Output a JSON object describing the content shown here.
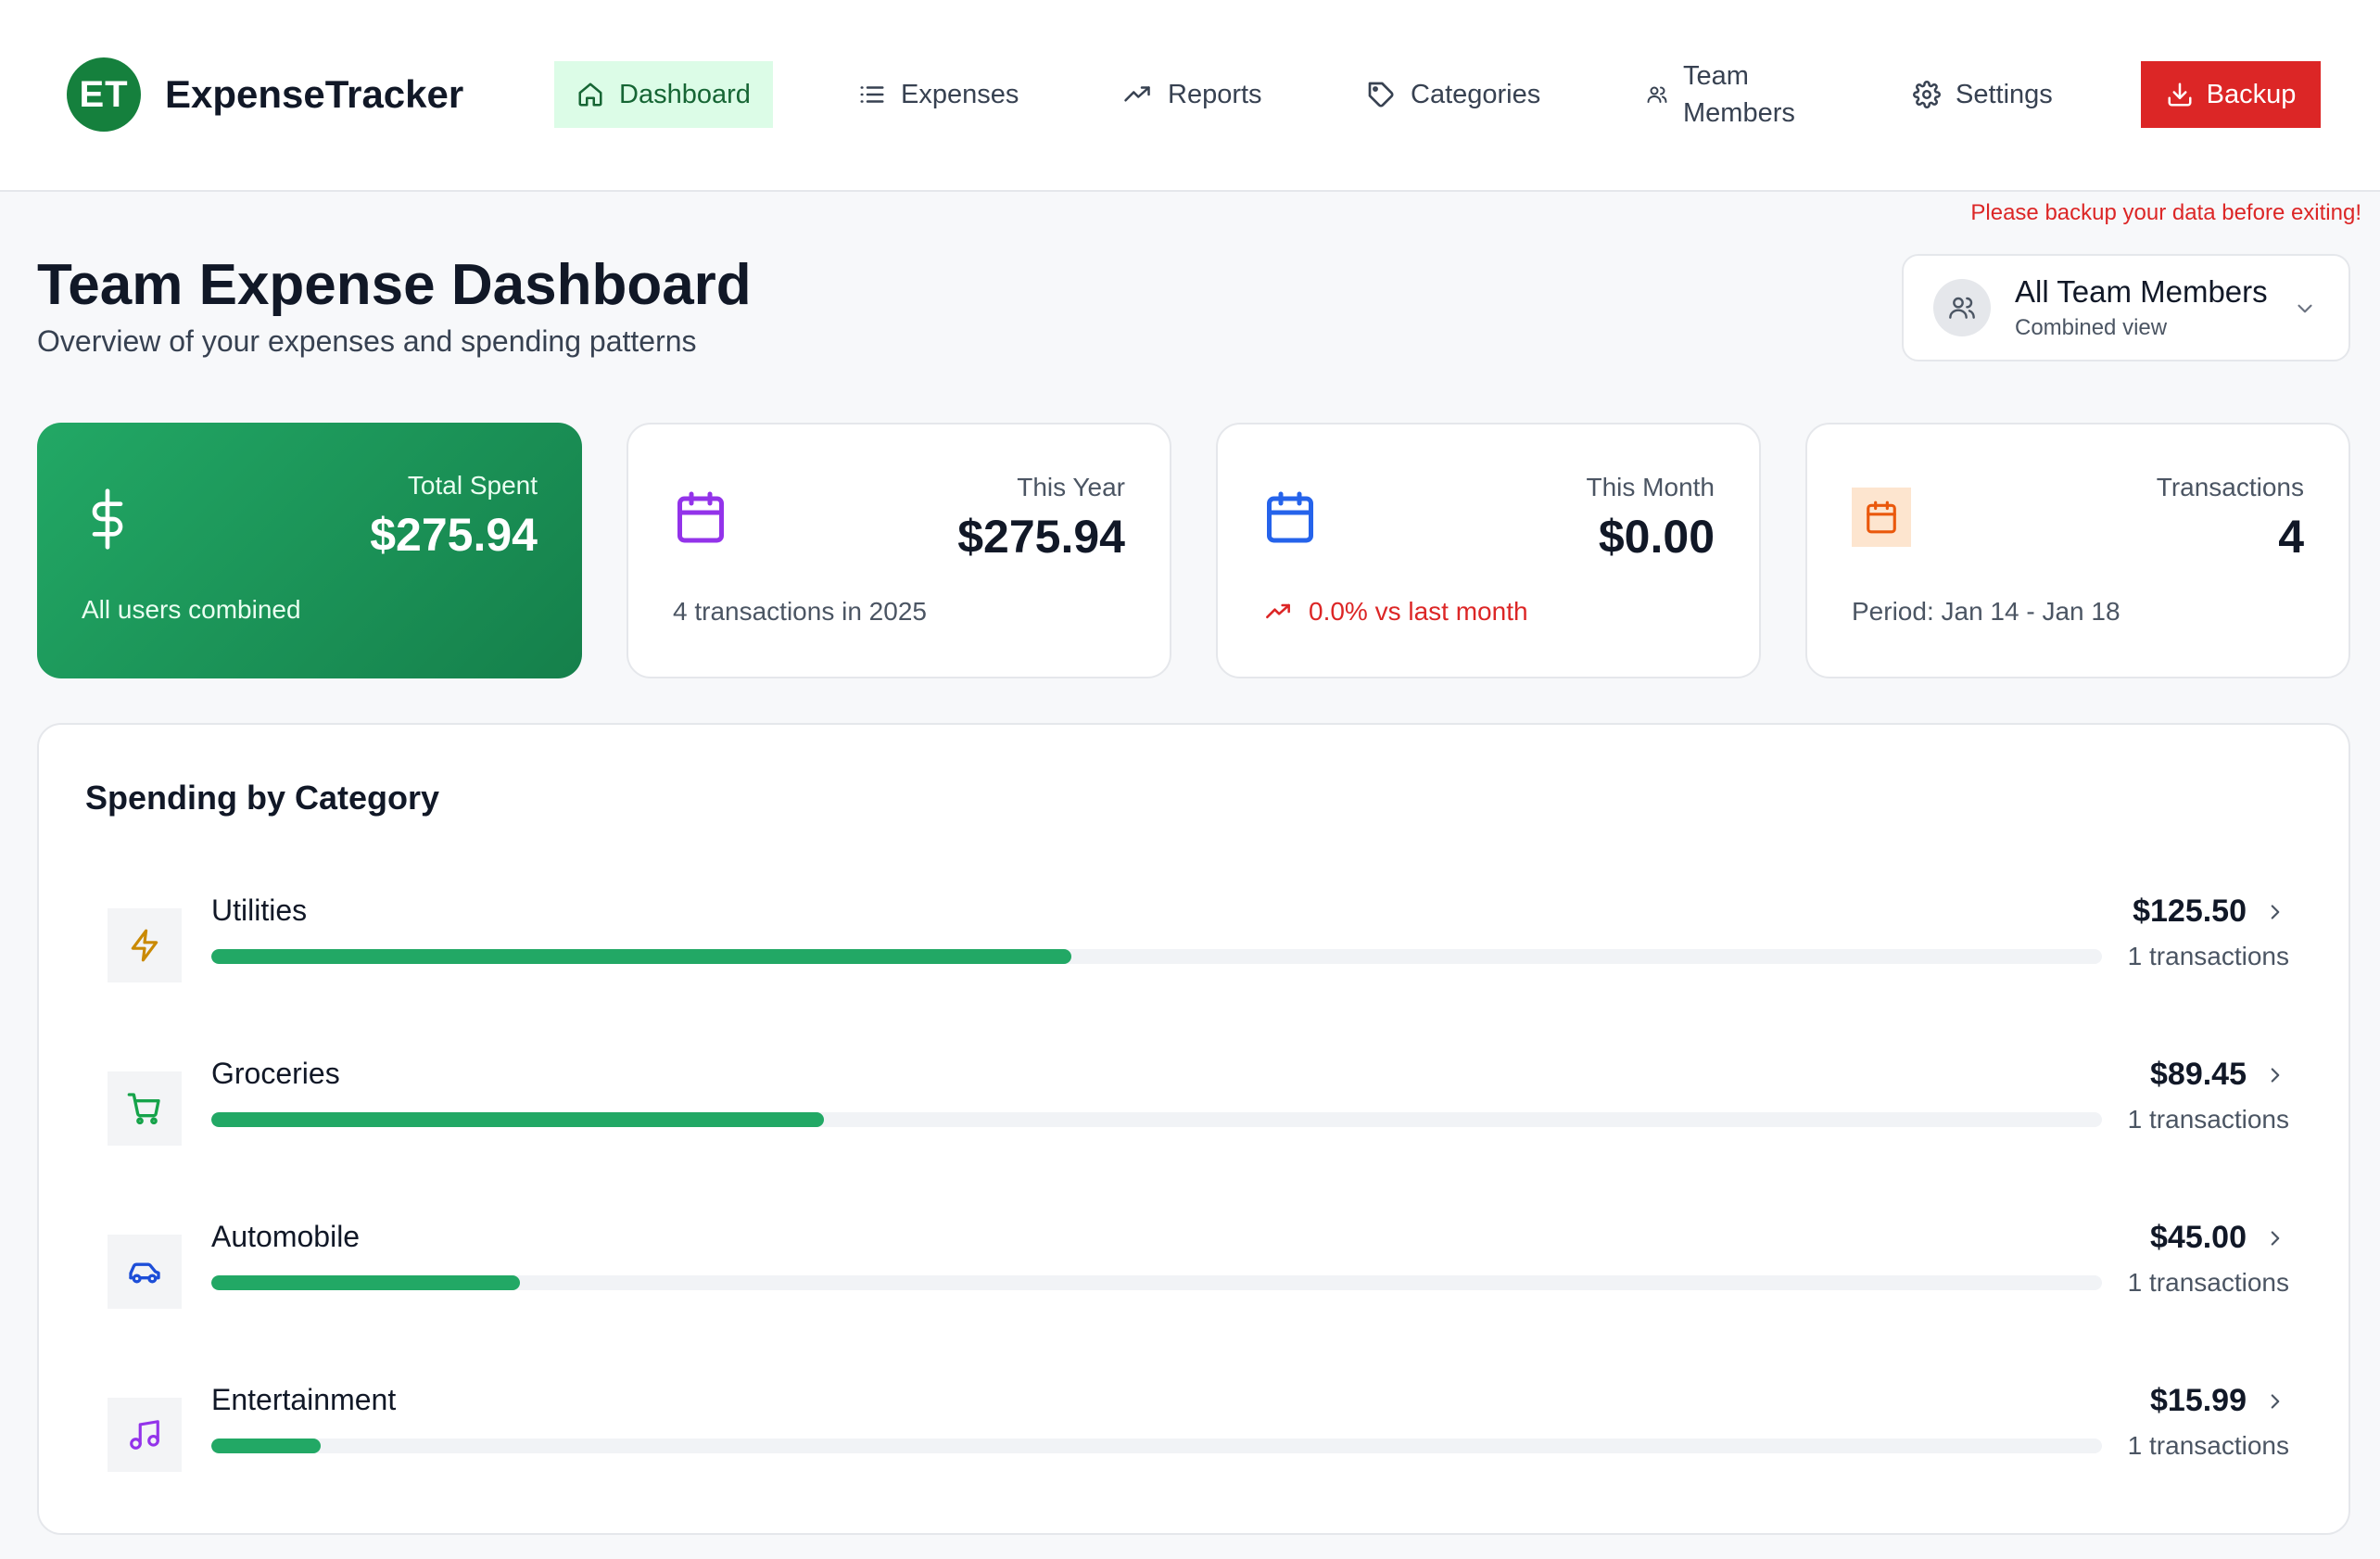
{
  "header": {
    "logo_initials": "ET",
    "brand": "ExpenseTracker",
    "nav": [
      {
        "label": "Dashboard",
        "icon": "home-icon",
        "active": true
      },
      {
        "label": "Expenses",
        "icon": "list-icon"
      },
      {
        "label": "Reports",
        "icon": "trending-up-icon"
      },
      {
        "label": "Categories",
        "icon": "tag-icon"
      },
      {
        "label_line1": "Team",
        "label_line2": "Members",
        "icon": "users-icon"
      },
      {
        "label": "Settings",
        "icon": "gear-icon"
      }
    ],
    "backup_label": "Backup",
    "backup_icon": "download-icon",
    "backup_warning": "Please backup your data before exiting!"
  },
  "page": {
    "title": "Team Expense Dashboard",
    "subtitle": "Overview of your expenses and spending patterns"
  },
  "member_select": {
    "name": "All Team Members",
    "sub": "Combined view"
  },
  "stats": [
    {
      "label": "Total Spent",
      "value": "$275.94",
      "foot": "All users combined",
      "icon": "dollar-icon"
    },
    {
      "label": "This Year",
      "value": "$275.94",
      "foot": "4 transactions in 2025",
      "icon": "calendar-icon"
    },
    {
      "label": "This Month",
      "value": "$0.00",
      "foot": "0.0% vs last month",
      "icon": "calendar-icon"
    },
    {
      "label": "Transactions",
      "value": "4",
      "foot": "Period: Jan 14 - Jan 18",
      "icon": "calendar-icon"
    }
  ],
  "spending": {
    "title": "Spending by Category",
    "categories": [
      {
        "name": "Utilities",
        "amount": "$125.50",
        "count": "1 transactions",
        "share": 0.455,
        "icon": "bolt-icon",
        "icon_color": "#ca8a04"
      },
      {
        "name": "Groceries",
        "amount": "$89.45",
        "count": "1 transactions",
        "share": 0.324,
        "icon": "cart-icon",
        "icon_color": "#16a34a"
      },
      {
        "name": "Automobile",
        "amount": "$45.00",
        "count": "1 transactions",
        "share": 0.163,
        "icon": "car-icon",
        "icon_color": "#1d4ed8"
      },
      {
        "name": "Entertainment",
        "amount": "$15.99",
        "count": "1 transactions",
        "share": 0.058,
        "icon": "music-icon",
        "icon_color": "#9333ea"
      }
    ]
  },
  "colors": {
    "accent_green": "#22a865",
    "active_nav_bg": "#dcfce7",
    "danger_red": "#dc2626",
    "purple": "#9333ea",
    "blue": "#2563eb",
    "orange": "#ea580c"
  }
}
